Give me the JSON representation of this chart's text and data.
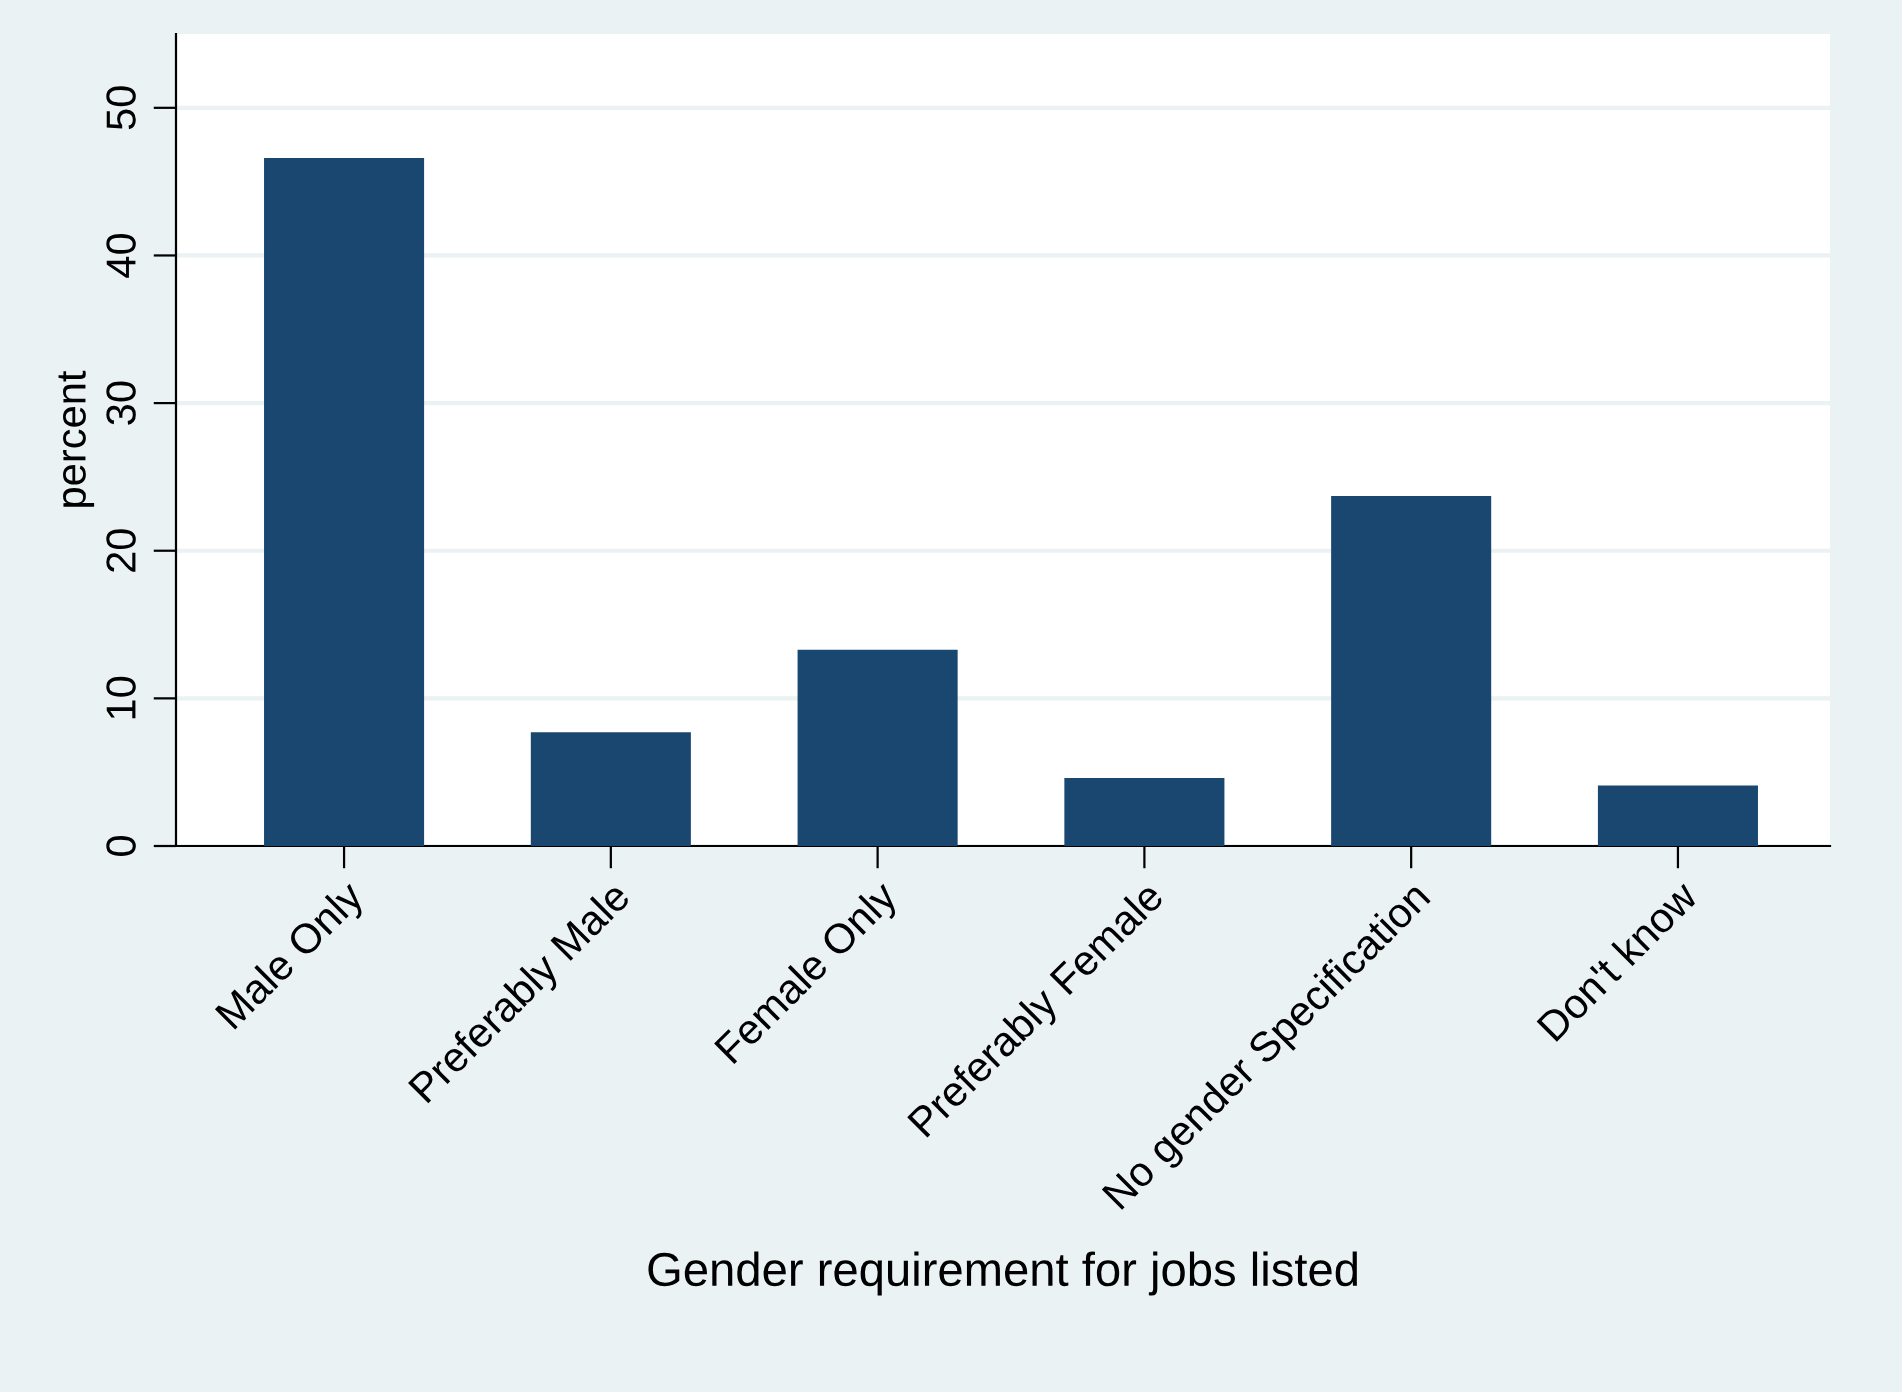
{
  "chart_data": {
    "type": "bar",
    "xlabel": "Gender requirement for jobs listed",
    "ylabel": "percent",
    "categories": [
      "Male Only",
      "Preferably Male",
      "Female Only",
      "Preferably Female",
      "No gender Specification",
      "Don't know"
    ],
    "values": [
      46.6,
      7.7,
      13.3,
      4.6,
      23.7,
      4.1
    ],
    "color": "#1a476f",
    "ylim": [
      0,
      55
    ],
    "yticks": [
      0,
      10,
      20,
      30,
      40,
      50
    ],
    "grid": "y"
  }
}
